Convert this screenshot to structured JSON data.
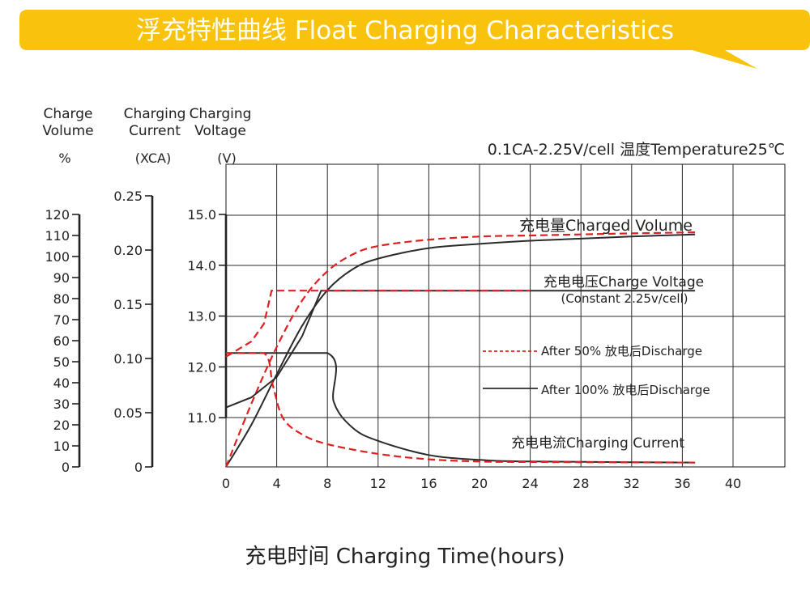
{
  "colors": {
    "banner": "#f9c20d",
    "banner_text": "#ffffff",
    "grid": "#2b2b2b",
    "solid_series": "#2b2b2b",
    "dashed_series": "#e02020"
  },
  "chart_data": {
    "type": "line",
    "title": "浮充特性曲线 Float Charging Characteristics",
    "subtitle": "0.1CA-2.25V/cell   温度Temperature25℃",
    "xlabel": "充电时间 Charging Time(hours)",
    "x_ticks": [
      "0",
      "4",
      "8",
      "12",
      "16",
      "20",
      "24",
      "28",
      "32",
      "36",
      "40"
    ],
    "xlim": [
      0,
      44
    ],
    "grid": true,
    "axes": {
      "volume": {
        "title": [
          "Charge",
          "Volume"
        ],
        "unit": "%",
        "range": [
          0,
          120
        ],
        "ticks": [
          "0",
          "10",
          "20",
          "30",
          "40",
          "50",
          "60",
          "70",
          "80",
          "90",
          "100",
          "110",
          "120"
        ]
      },
      "current": {
        "title": [
          "Charging",
          "Current"
        ],
        "unit": "(XCA)",
        "range": [
          0,
          0.25
        ],
        "ticks": [
          "0",
          "0.05",
          "0.10",
          "0.15",
          "0.20",
          "0.25"
        ]
      },
      "voltage": {
        "title": [
          "Charging",
          "Voltage"
        ],
        "unit": "(V)",
        "range": [
          10.0,
          15.0
        ],
        "ticks": [
          "11.0",
          "12.0",
          "13.0",
          "14.0",
          "15.0"
        ]
      }
    },
    "labels": {
      "charged_volume": "充电量Charged Volume",
      "charge_voltage": "充电电压Charge Voltage",
      "charge_voltage_note": "(Constant 2.25v/cell)",
      "charging_current": "充电电流Charging Current"
    },
    "legend": [
      {
        "style": "dashed",
        "label": "After 50% 放电后Discharge"
      },
      {
        "style": "solid",
        "label": "After 100% 放电后Discharge"
      }
    ],
    "series": [
      {
        "name": "Charged Volume",
        "discharge": "100%",
        "style": "solid",
        "axis": "volume",
        "x": [
          0,
          2,
          4,
          6,
          8,
          10,
          12,
          16,
          20,
          24,
          28,
          32,
          37
        ],
        "y": [
          0,
          20,
          44,
          67,
          84,
          94,
          99,
          104,
          106,
          107.5,
          108.5,
          109.5,
          110.5
        ]
      },
      {
        "name": "Charged Volume",
        "discharge": "50%",
        "style": "dashed",
        "axis": "volume",
        "x": [
          0,
          2,
          4,
          6,
          8,
          10,
          12,
          16,
          20,
          24,
          28,
          32,
          37
        ],
        "y": [
          0,
          30,
          57,
          79,
          93,
          101,
          105,
          108,
          109.5,
          110,
          110.5,
          111,
          111.5
        ]
      },
      {
        "name": "Charge Voltage",
        "discharge": "100%",
        "style": "solid",
        "axis": "voltage",
        "x": [
          0,
          2,
          4,
          6,
          7.5,
          8,
          37
        ],
        "y": [
          11.2,
          11.4,
          11.8,
          12.6,
          13.5,
          13.5,
          13.5
        ]
      },
      {
        "name": "Charge Voltage",
        "discharge": "50%",
        "style": "dashed",
        "axis": "voltage",
        "x": [
          0,
          2,
          3,
          3.6,
          8,
          24
        ],
        "y": [
          12.2,
          12.5,
          12.85,
          13.5,
          13.5,
          13.5
        ]
      },
      {
        "name": "Charging Current",
        "discharge": "100%",
        "style": "solid",
        "axis": "current",
        "x": [
          0,
          8,
          8.5,
          10,
          12,
          16,
          20,
          24,
          37
        ],
        "y": [
          0.105,
          0.105,
          0.06,
          0.036,
          0.024,
          0.011,
          0.0065,
          0.005,
          0.004
        ]
      },
      {
        "name": "Charging Current",
        "discharge": "50%",
        "style": "dashed",
        "axis": "current",
        "x": [
          0,
          3,
          3.7,
          4.5,
          6,
          8,
          12,
          16,
          20,
          24,
          37
        ],
        "y": [
          0.105,
          0.105,
          0.075,
          0.045,
          0.03,
          0.021,
          0.012,
          0.007,
          0.005,
          0.0045,
          0.004
        ]
      }
    ]
  }
}
